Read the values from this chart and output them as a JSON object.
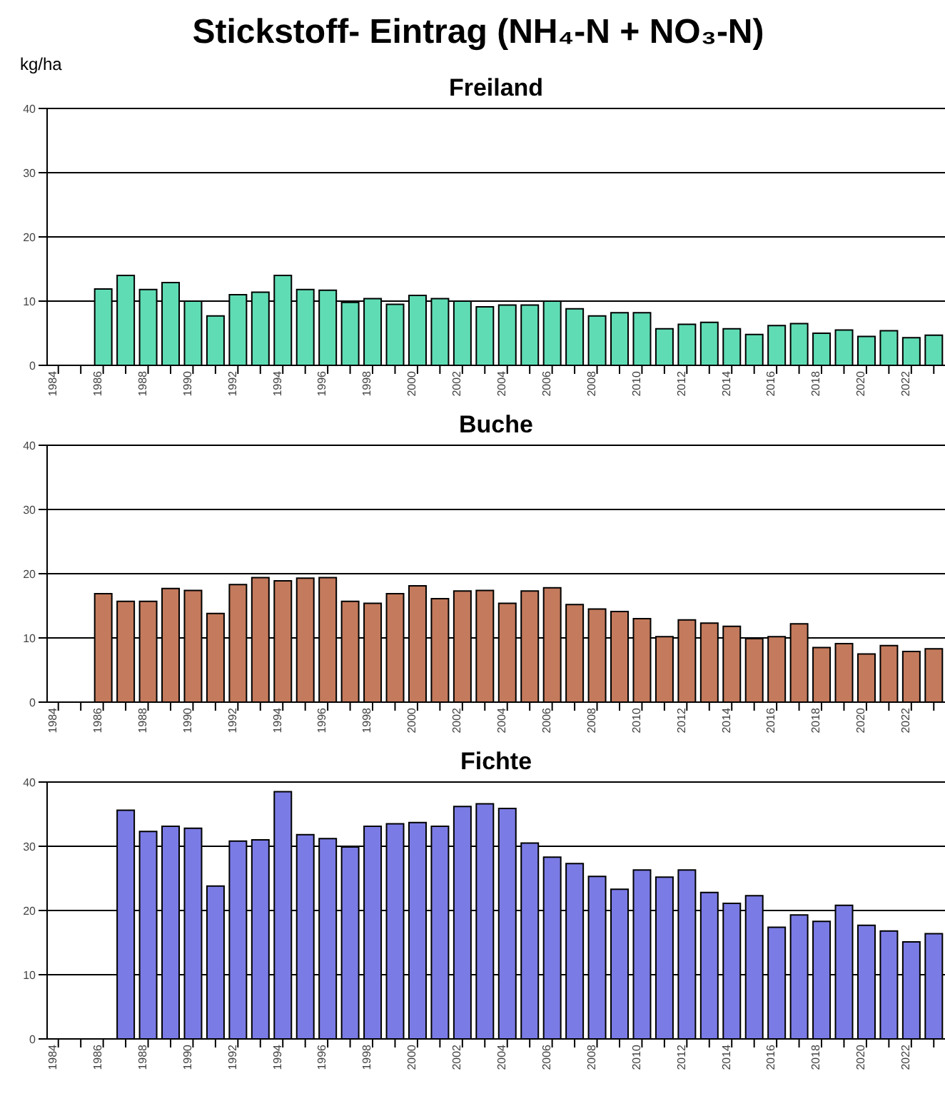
{
  "chart_data": [
    {
      "type": "bar",
      "title": "Stickstoff- Eintrag (NH₄-N + NO₃-N)",
      "subtitle": "Freiland",
      "ylabel": "kg/ha",
      "categories": [
        "1984",
        null,
        "1986",
        null,
        "1988",
        null,
        "1990",
        null,
        "1992",
        null,
        "1994",
        null,
        "1996",
        null,
        "1998",
        null,
        "2000",
        null,
        "2002",
        null,
        "2004",
        null,
        "2006",
        null,
        "2008",
        null,
        "2010",
        null,
        "2012",
        null,
        "2014",
        null,
        "2016",
        null,
        "2018",
        null,
        "2020",
        null,
        "2022",
        null
      ],
      "values": [
        null,
        null,
        11.9,
        14.0,
        11.8,
        12.9,
        10.0,
        7.7,
        11.0,
        11.4,
        14.0,
        11.8,
        11.7,
        9.8,
        10.4,
        9.5,
        10.9,
        10.4,
        10.0,
        9.1,
        9.4,
        9.4,
        10.0,
        8.8,
        7.7,
        8.2,
        8.2,
        5.7,
        6.4,
        6.7,
        5.7,
        4.8,
        6.2,
        6.5,
        5.0,
        5.5,
        4.5,
        5.4,
        4.3,
        4.7
      ],
      "color": "#5fdcb4",
      "ylim": [
        0,
        40
      ],
      "yticks": [
        0,
        10,
        20,
        30,
        40
      ],
      "grid": "y"
    },
    {
      "type": "bar",
      "title": "Buche",
      "categories": [
        "1984",
        null,
        "1986",
        null,
        "1988",
        null,
        "1990",
        null,
        "1992",
        null,
        "1994",
        null,
        "1996",
        null,
        "1998",
        null,
        "2000",
        null,
        "2002",
        null,
        "2004",
        null,
        "2006",
        null,
        "2008",
        null,
        "2010",
        null,
        "2012",
        null,
        "2014",
        null,
        "2016",
        null,
        "2018",
        null,
        "2020",
        null,
        "2022",
        null
      ],
      "values": [
        null,
        null,
        16.9,
        15.7,
        15.7,
        17.7,
        17.4,
        13.8,
        18.3,
        19.4,
        18.9,
        19.3,
        19.4,
        15.7,
        15.4,
        16.9,
        18.1,
        16.1,
        17.3,
        17.4,
        15.4,
        17.3,
        17.8,
        15.2,
        14.5,
        14.1,
        13.0,
        10.2,
        12.8,
        12.3,
        11.8,
        9.9,
        10.2,
        12.2,
        8.5,
        9.1,
        7.5,
        8.8,
        7.9,
        8.3
      ],
      "color": "#c47a5c",
      "ylim": [
        0,
        40
      ],
      "yticks": [
        0,
        10,
        20,
        30,
        40
      ],
      "grid": "y"
    },
    {
      "type": "bar",
      "title": "Fichte",
      "categories": [
        "1984",
        null,
        "1986",
        null,
        "1988",
        null,
        "1990",
        null,
        "1992",
        null,
        "1994",
        null,
        "1996",
        null,
        "1998",
        null,
        "2000",
        null,
        "2002",
        null,
        "2004",
        null,
        "2006",
        null,
        "2008",
        null,
        "2010",
        null,
        "2012",
        null,
        "2014",
        null,
        "2016",
        null,
        "2018",
        null,
        "2020",
        null,
        "2022",
        null
      ],
      "values": [
        null,
        null,
        null,
        35.6,
        32.3,
        33.1,
        32.8,
        23.8,
        30.8,
        31.0,
        38.5,
        31.8,
        31.2,
        29.9,
        33.1,
        33.5,
        33.7,
        33.1,
        36.2,
        36.6,
        35.9,
        30.5,
        28.3,
        27.3,
        25.3,
        23.3,
        26.3,
        25.2,
        26.3,
        22.8,
        21.1,
        22.3,
        17.4,
        19.3,
        18.3,
        20.8,
        17.7,
        16.8,
        15.1,
        16.4
      ],
      "color": "#7b7be6",
      "ylim": [
        0,
        40
      ],
      "yticks": [
        0,
        10,
        20,
        30,
        40
      ],
      "grid": "y"
    }
  ]
}
